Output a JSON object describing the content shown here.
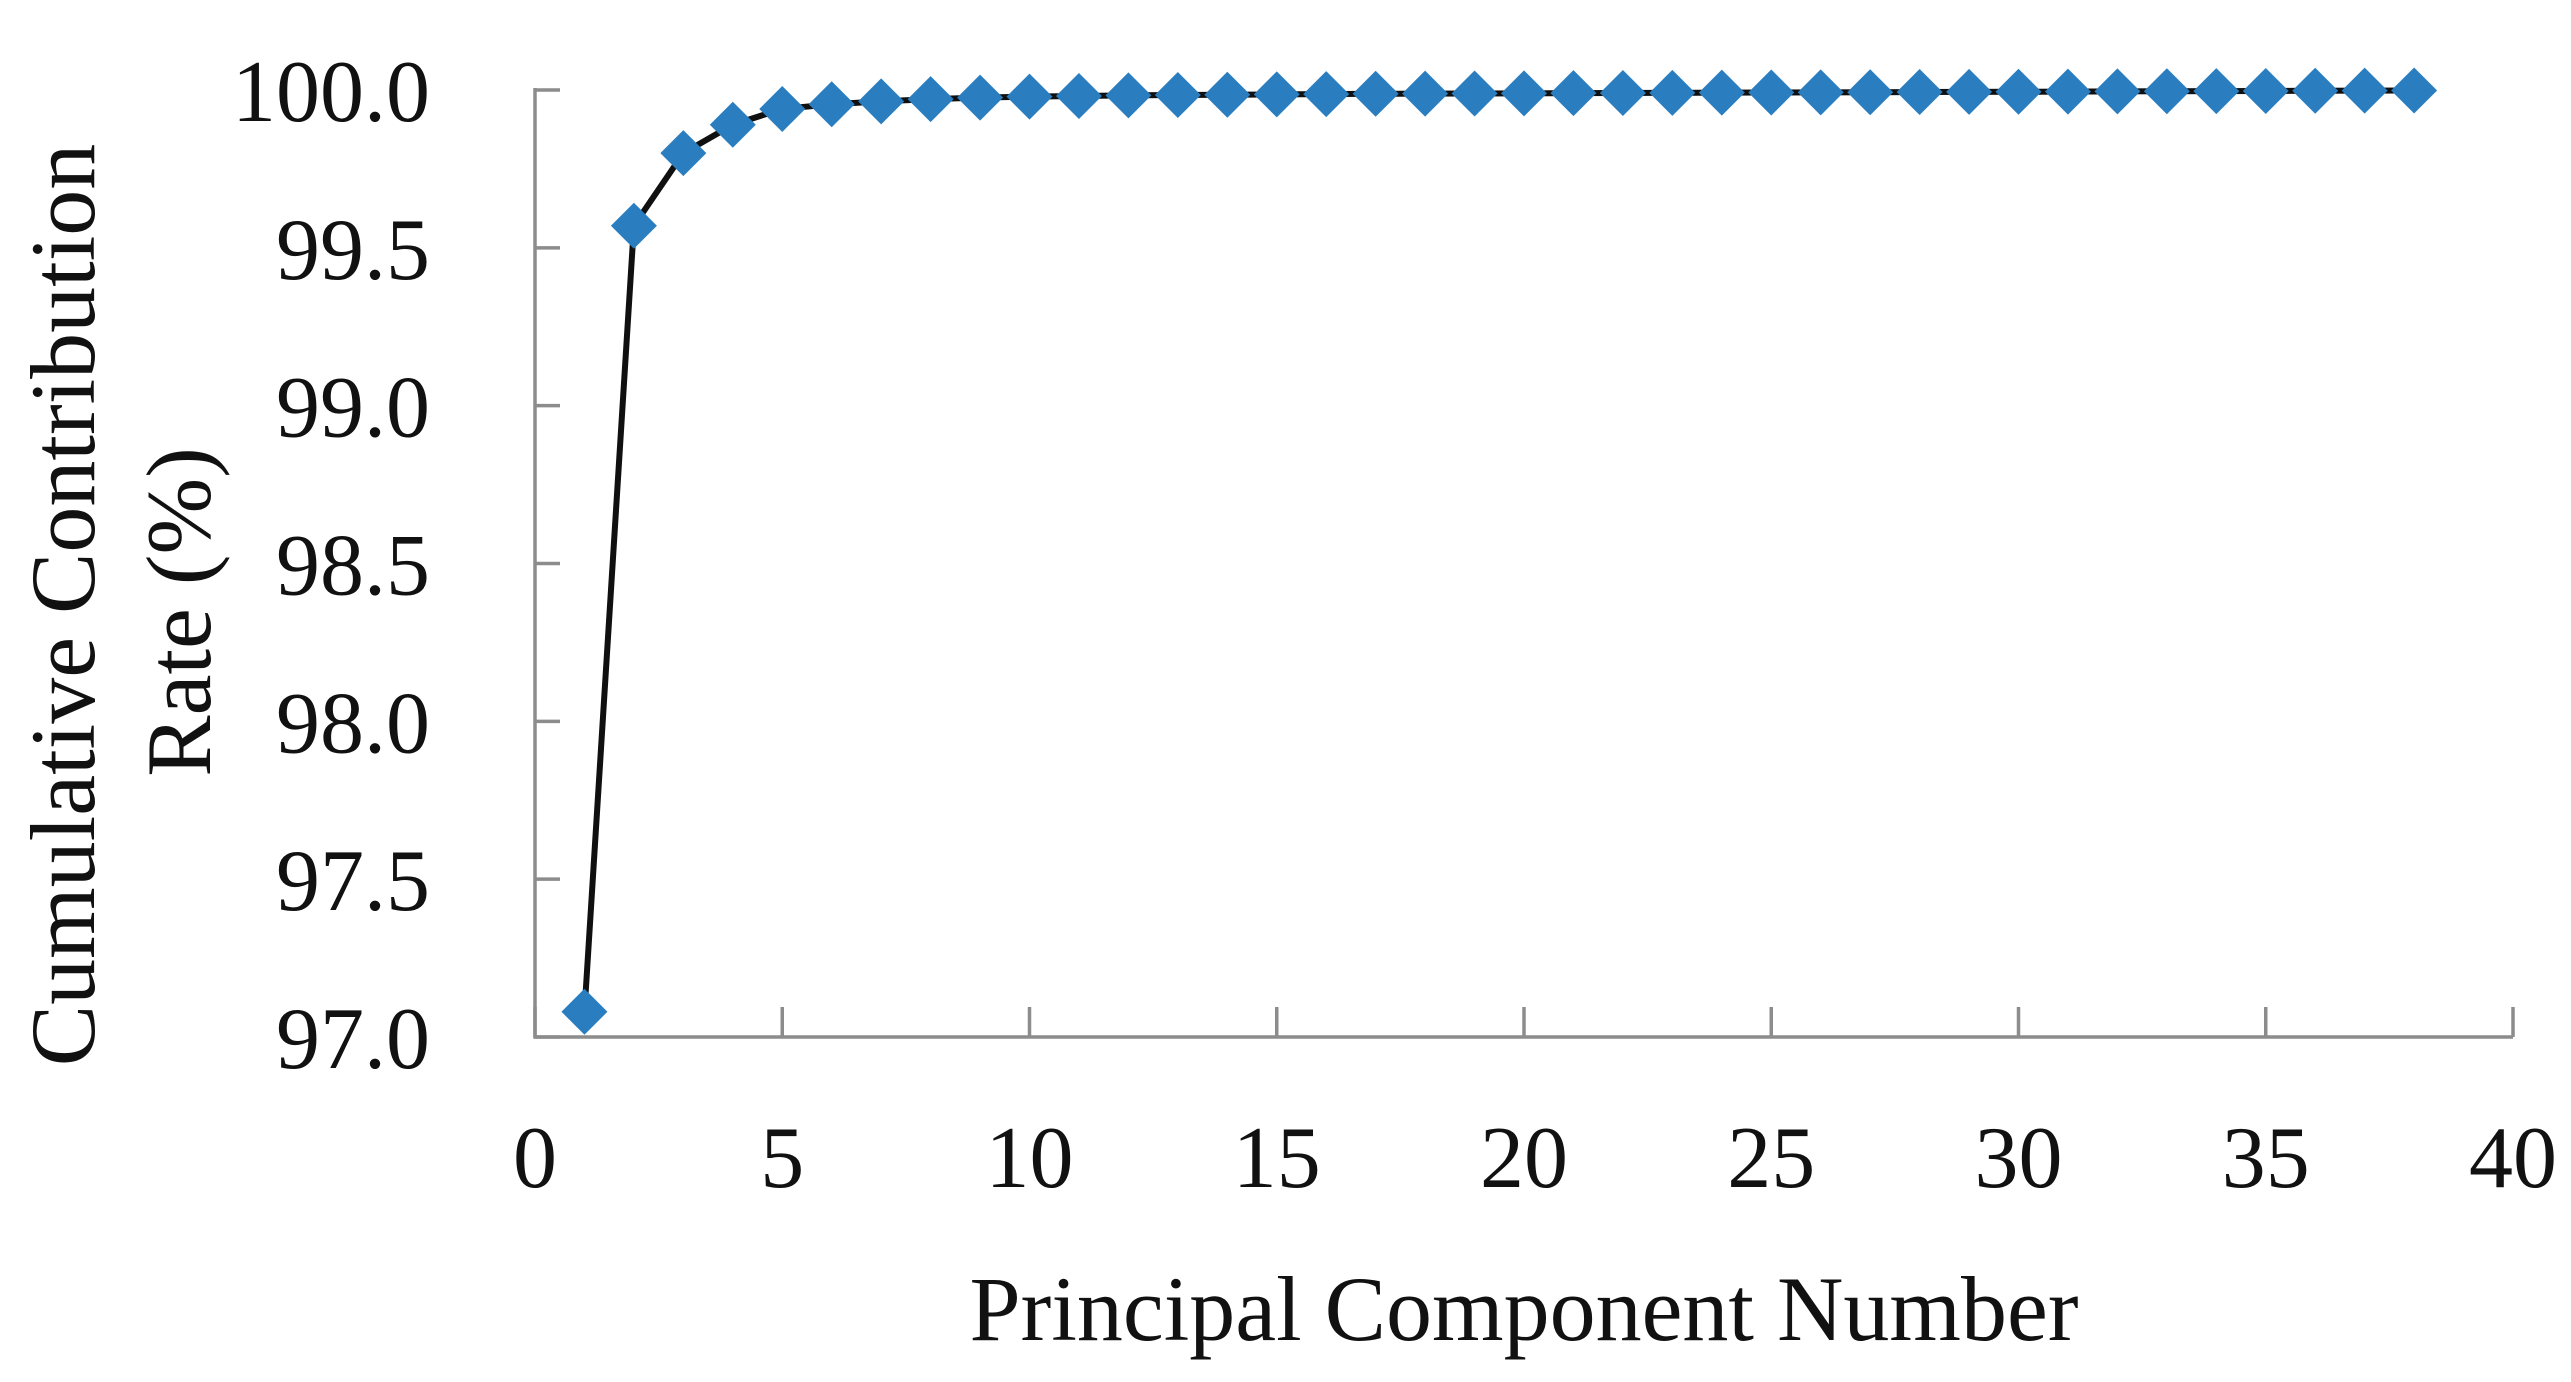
{
  "figure": {
    "background": "#ffffff"
  },
  "chart_data": {
    "type": "line",
    "title": "",
    "xlabel": "Principal Component Number",
    "ylabel": "Cumulative Contribution Rate (%)",
    "ylabel_lines": [
      "Cumulative Contribution",
      "Rate (%)"
    ],
    "xlim": [
      0,
      40
    ],
    "ylim": [
      97.0,
      100.0
    ],
    "grid": false,
    "legend": "none",
    "xticks": {
      "values": [
        0,
        5,
        10,
        15,
        20,
        25,
        30,
        35,
        40
      ],
      "labels": [
        "0",
        "5",
        "10",
        "15",
        "20",
        "25",
        "30",
        "35",
        "40"
      ]
    },
    "yticks": {
      "values": [
        100.0,
        99.5,
        99.0,
        98.5,
        98.0,
        97.5,
        97.0
      ],
      "labels": [
        "100.0",
        "99.5",
        "99.0",
        "98.5",
        "98.0",
        "97.5",
        "97.0"
      ]
    },
    "series": [
      {
        "name": "Cumulative contribution rate",
        "marker": "diamond",
        "marker_color": "#2A7EC0",
        "line_color": "#101010",
        "x": [
          1,
          2,
          3,
          4,
          5,
          6,
          7,
          8,
          9,
          10,
          11,
          12,
          13,
          14,
          15,
          16,
          17,
          18,
          19,
          20,
          21,
          22,
          23,
          24,
          25,
          26,
          27,
          28,
          29,
          30,
          31,
          32,
          33,
          34,
          35,
          36,
          37,
          38
        ],
        "values": [
          97.08,
          99.57,
          99.8,
          99.89,
          99.94,
          99.955,
          99.964,
          99.971,
          99.976,
          99.979,
          99.981,
          99.983,
          99.984,
          99.985,
          99.986,
          99.987,
          99.988,
          99.9885,
          99.989,
          99.9895,
          99.99,
          99.9905,
          99.991,
          99.9915,
          99.992,
          99.9925,
          99.993,
          99.9935,
          99.994,
          99.9945,
          99.995,
          99.9955,
          99.996,
          99.9965,
          99.997,
          99.9975,
          99.998,
          99.9985
        ]
      }
    ],
    "style": {
      "axis_color": "#8C8C8C",
      "text_color": "#111111",
      "background": "#ffffff"
    }
  }
}
